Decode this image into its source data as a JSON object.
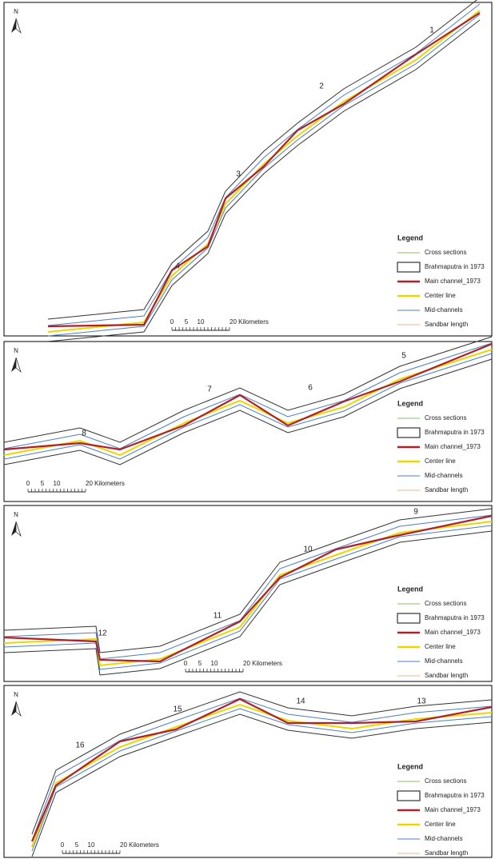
{
  "panels": [
    {
      "north": "N",
      "sections": [
        "1",
        "2",
        "3",
        "4"
      ],
      "scale_labels": [
        "0",
        "5",
        "10",
        "20 Kilometers"
      ],
      "legend": {
        "title": "Legend",
        "items": [
          "Cross sections",
          "Brahmaputra in 1973",
          "Main channel_1973",
          "Center line",
          "Mid-channels",
          "Sandbar length"
        ]
      }
    },
    {
      "north": "N",
      "sections": [
        "5",
        "6",
        "7",
        "8"
      ],
      "scale_labels": [
        "0",
        "5",
        "10",
        "20 Kilometers"
      ],
      "legend": {
        "title": "Legend",
        "items": [
          "Cross sections",
          "Brahmaputra in 1973",
          "Main channel_1973",
          "Center line",
          "Mid-channels",
          "Sandbar length"
        ]
      }
    },
    {
      "north": "N",
      "sections": [
        "9",
        "10",
        "11",
        "12"
      ],
      "scale_labels": [
        "0",
        "5",
        "10",
        "20 Kilometers"
      ],
      "legend": {
        "title": "Legend",
        "items": [
          "Cross sections",
          "Brahmaputra in 1973",
          "Main channel_1973",
          "Center line",
          "Mid-channels",
          "Sandbar length"
        ]
      }
    },
    {
      "north": "N",
      "sections": [
        "13",
        "14",
        "15",
        "16"
      ],
      "scale_labels": [
        "0",
        "5",
        "10",
        "20 Kilometers"
      ],
      "legend": {
        "title": "Legend",
        "items": [
          "Cross sections",
          "Brahmaputra in 1973",
          "Main channel_1973",
          "Center line",
          "Mid-channels",
          "Sandbar length"
        ]
      }
    }
  ]
}
